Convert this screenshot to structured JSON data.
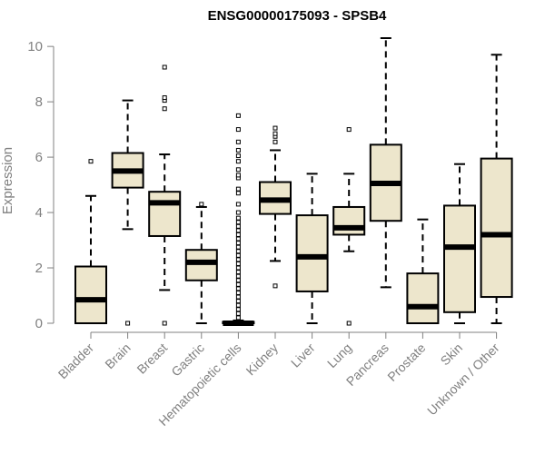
{
  "chart_data": {
    "type": "boxplot",
    "title": "ENSG00000175093 - SPSB4",
    "xlabel": "",
    "ylabel": "Expression",
    "ylim": [
      0,
      10.3
    ],
    "yticks": [
      0,
      2,
      4,
      6,
      8,
      10
    ],
    "colors": {
      "box_fill": "#EDE6CC",
      "box_stroke": "#000000",
      "axis": "#808080",
      "tick_text": "#808080"
    },
    "categories": [
      "Bladder",
      "Brain",
      "Breast",
      "Gastric",
      "Hematopoietic cells",
      "Kidney",
      "Liver",
      "Lung",
      "Pancreas",
      "Prostate",
      "Skin",
      "Unknown / Other"
    ],
    "boxes": [
      {
        "name": "Bladder",
        "min": 0,
        "q1": 0,
        "median": 0.85,
        "q3": 2.05,
        "max": 4.6,
        "outliers": [
          5.85
        ]
      },
      {
        "name": "Brain",
        "min": 3.4,
        "q1": 4.9,
        "median": 5.5,
        "q3": 6.15,
        "max": 8.05,
        "outliers": [
          0
        ]
      },
      {
        "name": "Breast",
        "min": 1.2,
        "q1": 3.15,
        "median": 4.35,
        "q3": 4.75,
        "max": 6.1,
        "outliers": [
          0,
          7.75,
          8.05,
          8.15,
          9.25
        ]
      },
      {
        "name": "Gastric",
        "min": 0,
        "q1": 1.55,
        "median": 2.2,
        "q3": 2.65,
        "max": 4.2,
        "outliers": [
          4.3
        ]
      },
      {
        "name": "Hematopoietic cells",
        "min": 0,
        "q1": 0,
        "median": 0,
        "q3": 0.05,
        "max": 0.1,
        "outliers": [
          0.2,
          0.35,
          0.5,
          0.65,
          0.8,
          0.95,
          1.1,
          1.25,
          1.4,
          1.55,
          1.7,
          1.85,
          2.0,
          2.15,
          2.3,
          2.45,
          2.6,
          2.75,
          2.9,
          3.05,
          3.2,
          3.35,
          3.5,
          3.65,
          3.8,
          4.0,
          4.3,
          4.7,
          4.85,
          5.25,
          5.35,
          5.55,
          5.85,
          6.05,
          6.25,
          6.55,
          7.0,
          7.5
        ]
      },
      {
        "name": "Kidney",
        "min": 2.25,
        "q1": 3.95,
        "median": 4.45,
        "q3": 5.1,
        "max": 6.25,
        "outliers": [
          1.35,
          6.55,
          6.75,
          6.85,
          7.05
        ]
      },
      {
        "name": "Liver",
        "min": 0,
        "q1": 1.15,
        "median": 2.4,
        "q3": 3.9,
        "max": 5.4,
        "outliers": []
      },
      {
        "name": "Lung",
        "min": 2.6,
        "q1": 3.2,
        "median": 3.45,
        "q3": 4.2,
        "max": 5.4,
        "outliers": [
          0,
          7.0
        ]
      },
      {
        "name": "Pancreas",
        "min": 1.3,
        "q1": 3.7,
        "median": 5.05,
        "q3": 6.45,
        "max": 10.3,
        "outliers": []
      },
      {
        "name": "Prostate",
        "min": 0,
        "q1": 0,
        "median": 0.6,
        "q3": 1.8,
        "max": 3.75,
        "outliers": []
      },
      {
        "name": "Skin",
        "min": 0,
        "q1": 0.4,
        "median": 2.75,
        "q3": 4.25,
        "max": 5.75,
        "outliers": []
      },
      {
        "name": "Unknown / Other",
        "min": 0,
        "q1": 0.95,
        "median": 3.2,
        "q3": 5.95,
        "max": 9.7,
        "outliers": []
      }
    ]
  }
}
